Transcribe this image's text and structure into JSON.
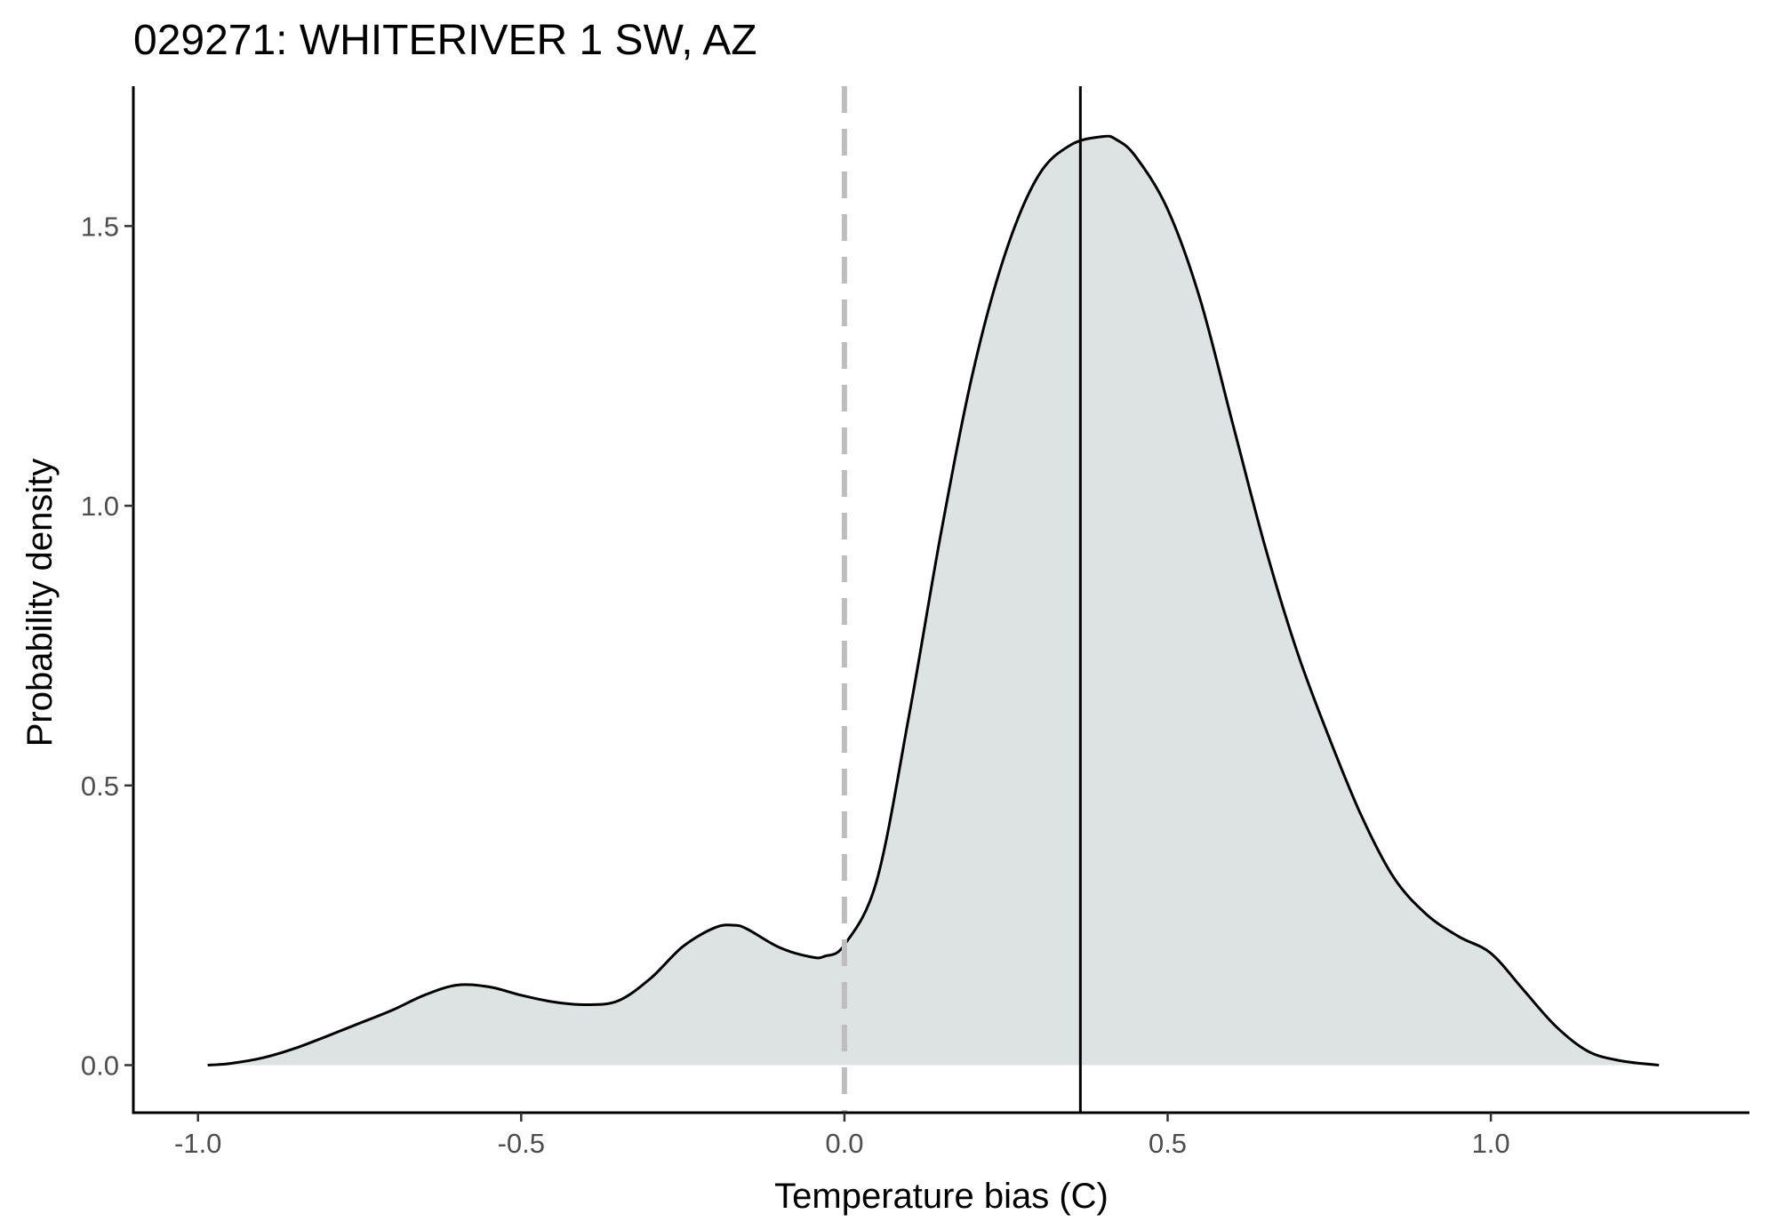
{
  "chart_data": {
    "type": "area",
    "title": "029271: WHITERIVER 1 SW, AZ",
    "xlabel": "Temperature bias (C)",
    "ylabel": "Probability density",
    "xlim": [
      -1.1,
      1.4
    ],
    "ylim": [
      -0.085,
      1.75
    ],
    "x_ticks": [
      {
        "value": -1.0,
        "label": "-1.0"
      },
      {
        "value": -0.5,
        "label": "-0.5"
      },
      {
        "value": 0.0,
        "label": "0.0"
      },
      {
        "value": 0.5,
        "label": "0.5"
      },
      {
        "value": 1.0,
        "label": "1.0"
      }
    ],
    "y_ticks": [
      {
        "value": 0.0,
        "label": "0.0"
      },
      {
        "value": 0.5,
        "label": "0.5"
      },
      {
        "value": 1.0,
        "label": "1.0"
      },
      {
        "value": 1.5,
        "label": "1.5"
      }
    ],
    "grid": false,
    "series": [
      {
        "x": [
          -0.985,
          -0.95,
          -0.9,
          -0.85,
          -0.8,
          -0.75,
          -0.7,
          -0.65,
          -0.6,
          -0.55,
          -0.5,
          -0.45,
          -0.4,
          -0.35,
          -0.3,
          -0.25,
          -0.2,
          -0.17,
          -0.15,
          -0.1,
          -0.05,
          -0.03,
          0.0,
          0.05,
          0.1,
          0.15,
          0.2,
          0.25,
          0.3,
          0.35,
          0.4,
          0.42,
          0.45,
          0.5,
          0.55,
          0.6,
          0.65,
          0.7,
          0.75,
          0.8,
          0.85,
          0.9,
          0.95,
          1.0,
          1.05,
          1.1,
          1.15,
          1.2,
          1.26
        ],
        "y": [
          0.0,
          0.003,
          0.013,
          0.03,
          0.052,
          0.075,
          0.098,
          0.125,
          0.143,
          0.14,
          0.125,
          0.113,
          0.108,
          0.115,
          0.155,
          0.212,
          0.246,
          0.25,
          0.243,
          0.21,
          0.193,
          0.195,
          0.215,
          0.33,
          0.625,
          0.955,
          1.245,
          1.455,
          1.59,
          1.645,
          1.66,
          1.655,
          1.625,
          1.53,
          1.37,
          1.15,
          0.93,
          0.74,
          0.585,
          0.445,
          0.335,
          0.27,
          0.23,
          0.2,
          0.135,
          0.07,
          0.025,
          0.008,
          0.0
        ],
        "fill": "#dde2e3",
        "stroke": "#000000"
      }
    ],
    "reference_lines": [
      {
        "orientation": "vertical",
        "x": 0.0,
        "style": "dashed",
        "color": "#bebebe"
      },
      {
        "orientation": "vertical",
        "x": 0.365,
        "style": "solid",
        "color": "#000000"
      }
    ]
  }
}
